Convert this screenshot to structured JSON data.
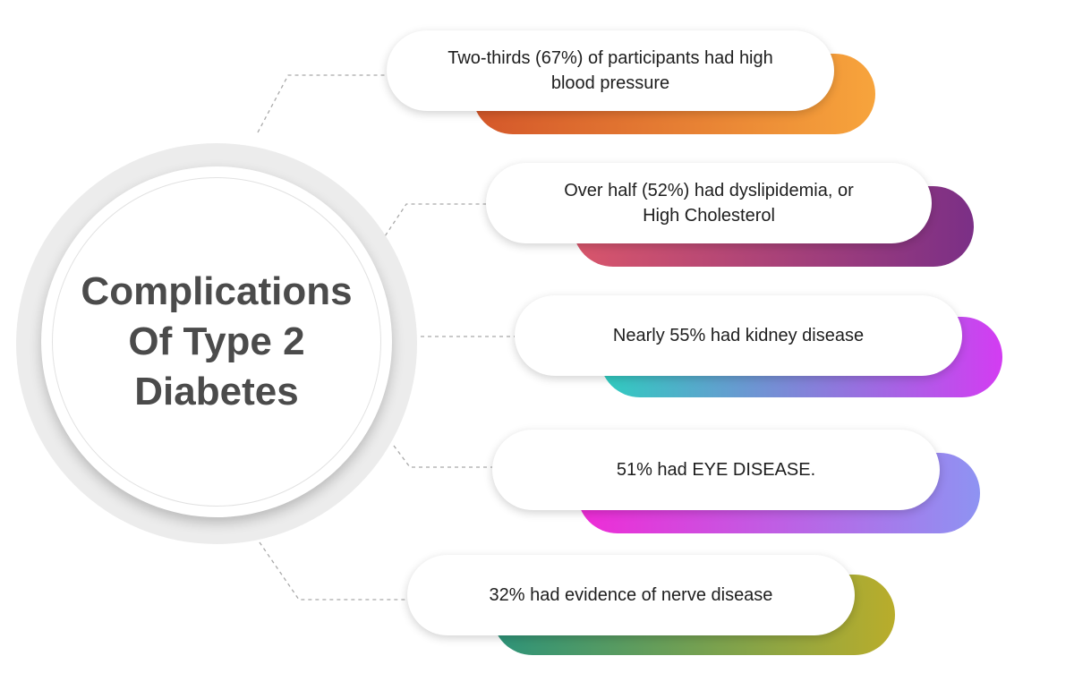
{
  "hub": {
    "title": "Complications Of Type 2 Diabetes"
  },
  "items": [
    {
      "text": "Two-thirds (67%) of participants had high blood pressure",
      "gradient": [
        "#d4572a",
        "#f7a43c"
      ]
    },
    {
      "text": "Over half (52%) had dyslipidemia, or High Cholesterol",
      "gradient": [
        "#d9566b",
        "#7b2f86"
      ]
    },
    {
      "text": "Nearly 55% had kidney disease",
      "gradient": [
        "#2ecdbf",
        "#d33cf2"
      ]
    },
    {
      "text": "51% had EYE DISEASE.",
      "gradient": [
        "#ef2bd6",
        "#8e93f2"
      ]
    },
    {
      "text": "32% had evidence of nerve disease",
      "gradient": [
        "#2c937a",
        "#b9ad2b"
      ]
    }
  ]
}
